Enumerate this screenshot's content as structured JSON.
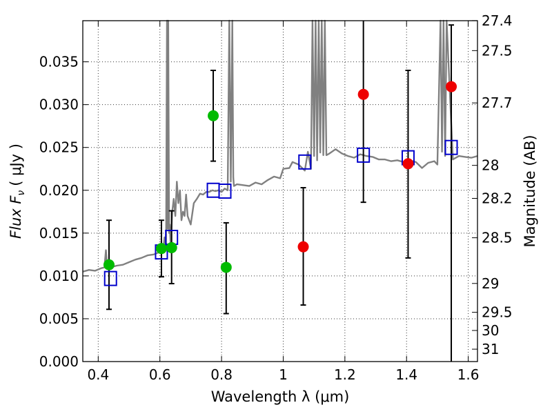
{
  "chart_data": {
    "type": "scatter",
    "xlabel": "Wavelength  λ (μm)",
    "ylabel": "Flux  F",
    "ylabel_sub": "ν",
    "ylabel_unit": "( μJy )",
    "y2label": "Magnitude (AB)",
    "xlim": [
      0.35,
      1.63
    ],
    "ylim": [
      0.0,
      0.0398
    ],
    "x_ticks": [
      0.4,
      0.6,
      0.8,
      1.0,
      1.2,
      1.4,
      1.6
    ],
    "x_tick_labels": [
      "0.4",
      "0.6",
      "0.8",
      "1",
      "1.2",
      "1.4",
      "1.6"
    ],
    "y_ticks": [
      0.0,
      0.005,
      0.01,
      0.015,
      0.02,
      0.025,
      0.03,
      0.035
    ],
    "y_tick_labels": [
      "0.000",
      "0.005",
      "0.010",
      "0.015",
      "0.020",
      "0.025",
      "0.030",
      "0.035"
    ],
    "mag_ticks": [
      27.4,
      27.5,
      27.7,
      28,
      28.2,
      28.5,
      29,
      29.5,
      30,
      31
    ],
    "mag_tick_labels": [
      "27.4",
      "27.5",
      "27.7",
      "28",
      "28.2",
      "28.5",
      "29",
      "29.5",
      "30",
      "31"
    ],
    "grid": true,
    "colors": {
      "spectrum": "#808080",
      "model": "#0000cc",
      "detected": "#00bb00",
      "nondetected": "#ee0000",
      "errorbar": "#000000"
    },
    "spectrum": {
      "name": "",
      "x": [
        0.35,
        0.37,
        0.39,
        0.41,
        0.42,
        0.425,
        0.43,
        0.44,
        0.46,
        0.48,
        0.5,
        0.52,
        0.54,
        0.56,
        0.58,
        0.6,
        0.61,
        0.615,
        0.62,
        0.623,
        0.625,
        0.627,
        0.63,
        0.632,
        0.635,
        0.64,
        0.645,
        0.65,
        0.655,
        0.66,
        0.665,
        0.67,
        0.675,
        0.68,
        0.685,
        0.69,
        0.7,
        0.71,
        0.72,
        0.73,
        0.74,
        0.75,
        0.76,
        0.77,
        0.78,
        0.79,
        0.8,
        0.81,
        0.82,
        0.825,
        0.83,
        0.835,
        0.838,
        0.84,
        0.845,
        0.85,
        0.87,
        0.89,
        0.91,
        0.93,
        0.95,
        0.97,
        0.99,
        1.0,
        1.02,
        1.03,
        1.05,
        1.07,
        1.08,
        1.09,
        1.095,
        1.1,
        1.105,
        1.11,
        1.115,
        1.12,
        1.125,
        1.13,
        1.135,
        1.14,
        1.15,
        1.17,
        1.19,
        1.21,
        1.23,
        1.25,
        1.27,
        1.29,
        1.31,
        1.33,
        1.35,
        1.37,
        1.39,
        1.41,
        1.43,
        1.45,
        1.47,
        1.49,
        1.5,
        1.51,
        1.515,
        1.52,
        1.525,
        1.53,
        1.55,
        1.57,
        1.59,
        1.61,
        1.63
      ],
      "y": [
        0.0105,
        0.0107,
        0.0106,
        0.0109,
        0.011,
        0.013,
        0.0108,
        0.011,
        0.0112,
        0.0113,
        0.0116,
        0.0119,
        0.0121,
        0.0124,
        0.0125,
        0.0128,
        0.0127,
        0.0145,
        0.0135,
        0.0398,
        0.0155,
        0.0398,
        0.015,
        0.016,
        0.0135,
        0.0175,
        0.019,
        0.017,
        0.021,
        0.0185,
        0.02,
        0.0165,
        0.0175,
        0.017,
        0.0195,
        0.017,
        0.016,
        0.0185,
        0.019,
        0.0196,
        0.0195,
        0.0198,
        0.0198,
        0.02,
        0.0199,
        0.02,
        0.0198,
        0.0202,
        0.02,
        0.0398,
        0.021,
        0.0398,
        0.0215,
        0.0205,
        0.0206,
        0.0207,
        0.0206,
        0.0205,
        0.0209,
        0.0207,
        0.0212,
        0.0216,
        0.0214,
        0.0225,
        0.0226,
        0.0233,
        0.023,
        0.0223,
        0.0245,
        0.0225,
        0.0398,
        0.024,
        0.0398,
        0.0235,
        0.0398,
        0.0244,
        0.0398,
        0.0241,
        0.0398,
        0.0241,
        0.0243,
        0.0248,
        0.0243,
        0.024,
        0.0238,
        0.0242,
        0.024,
        0.0239,
        0.0236,
        0.0236,
        0.0234,
        0.0235,
        0.0233,
        0.0235,
        0.0233,
        0.0226,
        0.0232,
        0.0234,
        0.023,
        0.0398,
        0.0245,
        0.0398,
        0.024,
        0.0398,
        0.0236,
        0.024,
        0.0239,
        0.0238,
        0.024
      ]
    },
    "model_points": {
      "x": [
        0.44,
        0.605,
        0.638,
        0.773,
        0.811,
        1.07,
        1.26,
        1.405,
        1.545
      ],
      "y": [
        0.0097,
        0.0128,
        0.0145,
        0.02,
        0.0199,
        0.0233,
        0.0241,
        0.0238,
        0.025
      ]
    },
    "detected_points": {
      "x": [
        0.435,
        0.605,
        0.638,
        0.773,
        0.815
      ],
      "y": [
        0.0113,
        0.0132,
        0.0133,
        0.0287,
        0.011
      ],
      "err_low": [
        0.0052,
        0.0033,
        0.0042,
        0.0053,
        0.0054
      ],
      "err_high": [
        0.0052,
        0.0033,
        0.0043,
        0.0053,
        0.0052
      ]
    },
    "nondetected_points": {
      "x": [
        1.065,
        1.26,
        1.405,
        1.545
      ],
      "y": [
        0.0134,
        0.0312,
        0.0231,
        0.0321
      ],
      "err_low": [
        0.0068,
        0.0126,
        0.011,
        0.0323
      ],
      "err_high": [
        0.0069,
        0.0098,
        0.0109,
        0.0072
      ]
    }
  }
}
